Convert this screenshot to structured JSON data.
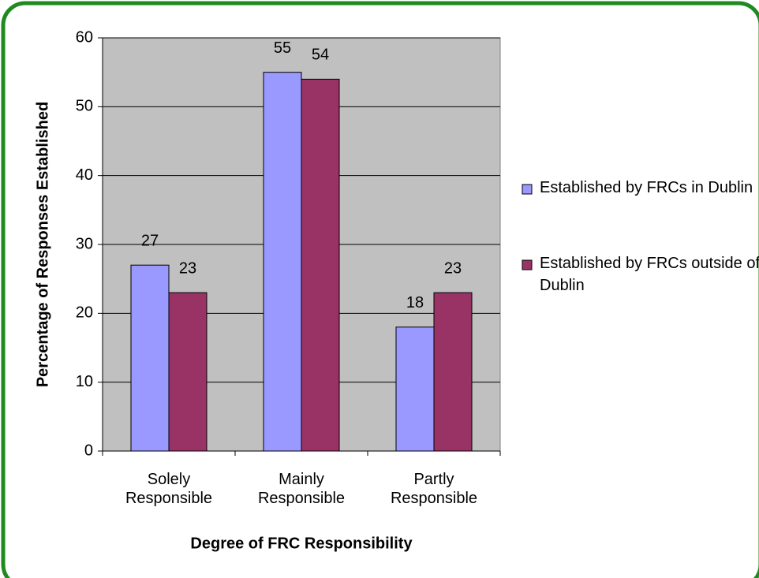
{
  "chart_data": {
    "type": "bar",
    "xlabel": "Degree of FRC Responsibility",
    "ylabel": "Percentage of Responses Established",
    "categories": [
      "Solely Responsible",
      "Mainly Responsible",
      "Partly Responsible"
    ],
    "series": [
      {
        "name": "Established by FRCs in Dublin",
        "color": "#9999ff",
        "values": [
          27,
          55,
          18
        ]
      },
      {
        "name": "Established by FRCs outside of Dublin",
        "color": "#993366",
        "values": [
          23,
          54,
          23
        ]
      }
    ],
    "ylim": [
      0,
      60
    ],
    "yticks": [
      0,
      10,
      20,
      30,
      40,
      50,
      60
    ],
    "grid": true,
    "legend": "right"
  }
}
